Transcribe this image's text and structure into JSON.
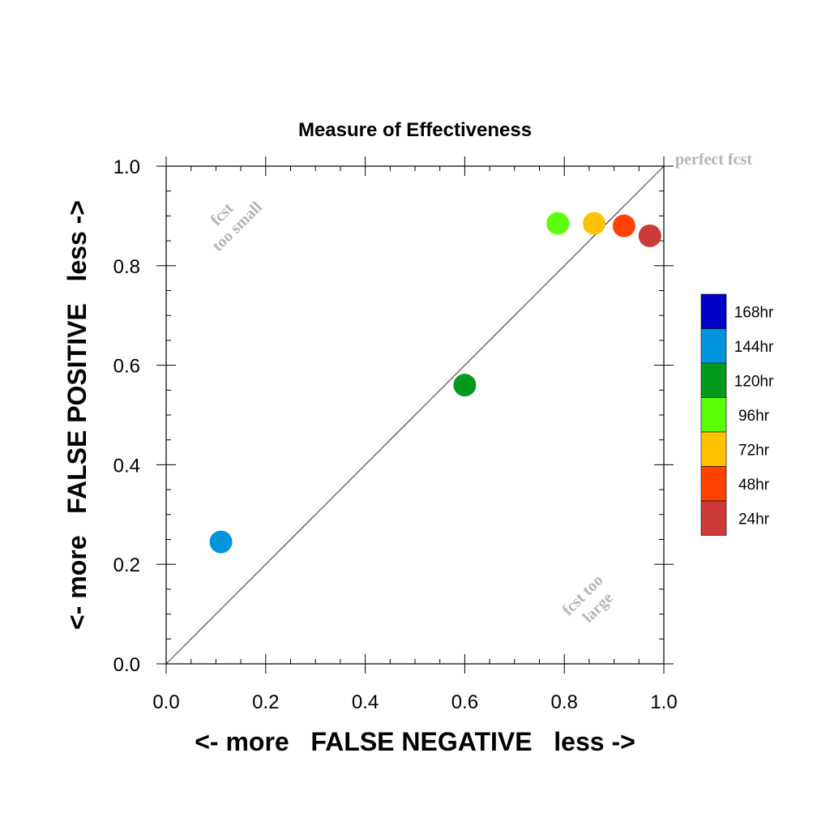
{
  "chart_data": {
    "type": "scatter",
    "title": "Measure of Effectiveness",
    "xlabel": "<- more   FALSE NEGATIVE   less ->",
    "ylabel": "<- more   FALSE POSITIVE   less ->",
    "xlim": [
      0.0,
      1.0
    ],
    "ylim": [
      0.0,
      1.0
    ],
    "x_ticks": [
      "0.0",
      "0.2",
      "0.4",
      "0.6",
      "0.8",
      "1.0"
    ],
    "y_ticks": [
      "0.0",
      "0.2",
      "0.4",
      "0.6",
      "0.8",
      "1.0"
    ],
    "grid": false,
    "reference_line": {
      "from": [
        0.0,
        0.0
      ],
      "to": [
        1.0,
        1.0
      ],
      "label": "perfect fcst"
    },
    "annotations": {
      "upper_left": [
        "fcst",
        "too small"
      ],
      "lower_right": [
        "fcst too",
        "large"
      ]
    },
    "points": [
      {
        "label": "144hr",
        "x": 0.11,
        "y": 0.245,
        "color": "#0095dd"
      },
      {
        "label": "120hr",
        "x": 0.6,
        "y": 0.56,
        "color": "#039a1b"
      },
      {
        "label": "96hr",
        "x": 0.787,
        "y": 0.885,
        "color": "#5cff09"
      },
      {
        "label": "72hr",
        "x": 0.86,
        "y": 0.885,
        "color": "#ffc200"
      },
      {
        "label": "48hr",
        "x": 0.92,
        "y": 0.88,
        "color": "#ff4200"
      },
      {
        "label": "24hr",
        "x": 0.972,
        "y": 0.86,
        "color": "#cc3a3a"
      }
    ],
    "legend": {
      "placement": "right",
      "entries": [
        {
          "label": "168hr",
          "color": "#0000c8"
        },
        {
          "label": "144hr",
          "color": "#0095dd"
        },
        {
          "label": "120hr",
          "color": "#039a1b"
        },
        {
          "label": "96hr",
          "color": "#5cff09"
        },
        {
          "label": "72hr",
          "color": "#ffc200"
        },
        {
          "label": "48hr",
          "color": "#ff4200"
        },
        {
          "label": "24hr",
          "color": "#cc3a3a"
        }
      ]
    }
  }
}
